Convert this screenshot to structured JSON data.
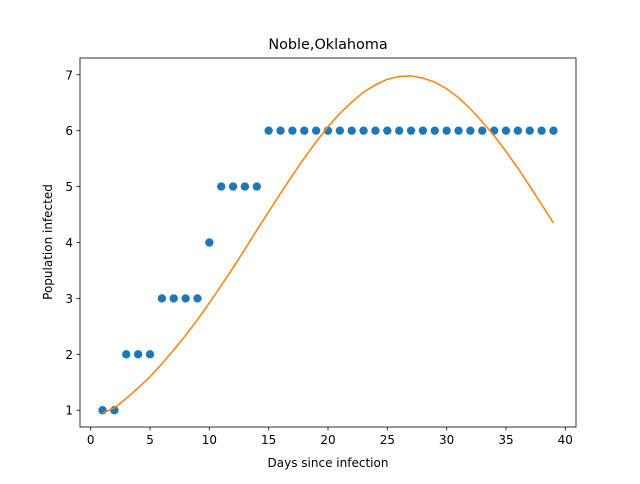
{
  "chart_data": {
    "type": "scatter",
    "title": "Noble,Oklahoma",
    "x_label": "Days since infection",
    "y_label": "Population infected",
    "x": [
      1,
      2,
      3,
      4,
      5,
      6,
      7,
      8,
      9,
      10,
      11,
      12,
      13,
      14,
      15,
      16,
      17,
      18,
      19,
      20,
      21,
      22,
      23,
      24,
      25,
      26,
      27,
      28,
      29,
      30,
      31,
      32,
      33,
      34,
      35,
      36,
      37,
      38,
      39
    ],
    "series": [
      {
        "mode": "markers",
        "color": "#1f77b4",
        "values": [
          1,
          1,
          2,
          2,
          2,
          3,
          3,
          3,
          3,
          4,
          5,
          5,
          5,
          5,
          6,
          6,
          6,
          6,
          6,
          6,
          6,
          6,
          6,
          6,
          6,
          6,
          6,
          6,
          6,
          6,
          6,
          6,
          6,
          6,
          6,
          6,
          6,
          6,
          6
        ]
      },
      {
        "mode": "line",
        "color": "#ff7f0e",
        "values": [
          0.95,
          1.04,
          1.21,
          1.4,
          1.6,
          1.83,
          2.08,
          2.34,
          2.62,
          2.92,
          3.23,
          3.55,
          3.88,
          4.22,
          4.55,
          4.88,
          5.2,
          5.51,
          5.8,
          6.07,
          6.31,
          6.51,
          6.69,
          6.82,
          6.92,
          6.97,
          6.98,
          6.94,
          6.87,
          6.75,
          6.59,
          6.39,
          6.16,
          5.91,
          5.63,
          5.33,
          5.01,
          4.68,
          4.35
        ]
      }
    ],
    "xlim": [
      -0.9,
      40.9
    ],
    "ylim": [
      0.7,
      7.3
    ],
    "xticks": [
      0,
      5,
      10,
      15,
      20,
      25,
      30,
      35,
      40
    ],
    "yticks": [
      1,
      2,
      3,
      4,
      5,
      6,
      7
    ]
  }
}
